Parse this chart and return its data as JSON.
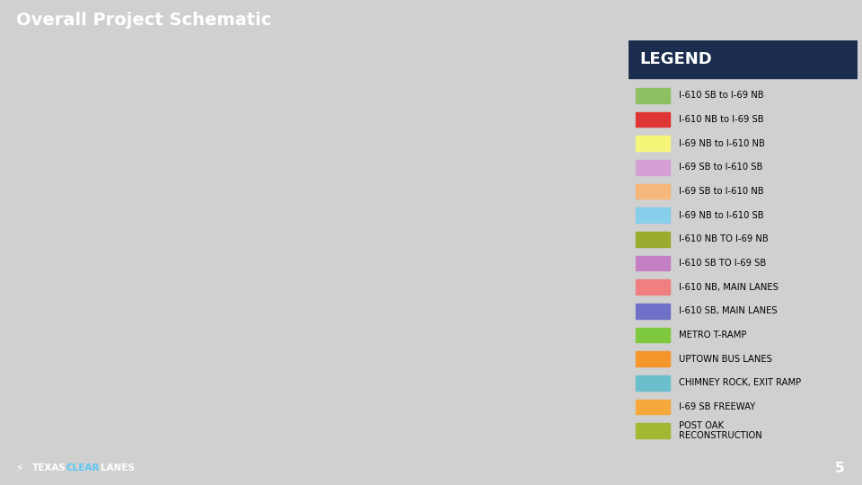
{
  "title": "Overall Project Schematic",
  "title_color": "#ffffff",
  "title_bg_color": "#0d1f3c",
  "legend_title": "LEGEND",
  "legend_items": [
    {
      "color": "#8dc063",
      "label": "I-610 SB to I-69 NB"
    },
    {
      "color": "#e03535",
      "label": "I-610 NB to I-69 SB"
    },
    {
      "color": "#f5f57a",
      "label": "I-69 NB to I-610 NB"
    },
    {
      "color": "#d4a0d4",
      "label": "I-69 SB to I-610 SB"
    },
    {
      "color": "#f5b87a",
      "label": "I-69 SB to I-610 NB"
    },
    {
      "color": "#87ceeb",
      "label": "I-69 NB to I-610 SB"
    },
    {
      "color": "#9aab2e",
      "label": "I-610 NB TO I-69 NB"
    },
    {
      "color": "#c47fc4",
      "label": "I-610 SB TO I-69 SB"
    },
    {
      "color": "#f08080",
      "label": "I-610 NB, MAIN LANES"
    },
    {
      "color": "#7070c8",
      "label": "I-610 SB, MAIN LANES"
    },
    {
      "color": "#7dc83c",
      "label": "METRO T-RAMP"
    },
    {
      "color": "#f5962a",
      "label": "UPTOWN BUS LANES"
    },
    {
      "color": "#6bbfcc",
      "label": "CHIMNEY ROCK, EXIT RAMP"
    },
    {
      "color": "#f5a83c",
      "label": "I-69 SB FREEWAY"
    },
    {
      "color": "#a0b832",
      "label": "POST OAK\nRECONSTRUCTION"
    }
  ],
  "footer_bg_color": "#0d1f3c",
  "page_number": "5",
  "page_number_bg": "#c8821e",
  "main_bg_color": "#d0d0d0",
  "legend_bg_color": "#f0f0f0",
  "legend_header_bg": "#1a2d4f",
  "map_bg_color": "#e8e4dc"
}
